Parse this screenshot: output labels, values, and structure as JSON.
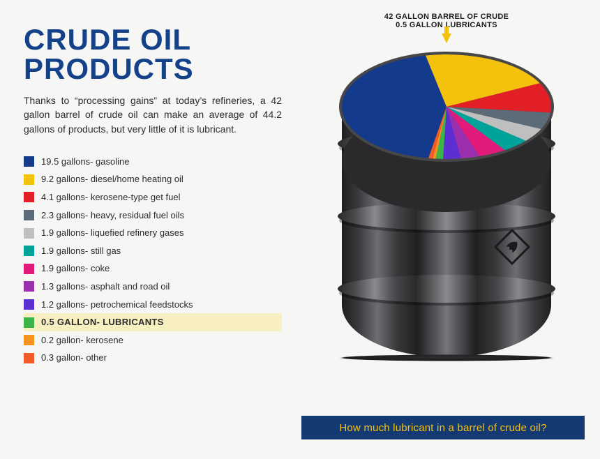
{
  "title_color": "#13418a",
  "title": "CRUDE OIL PRODUCTS",
  "intro": "Thanks to “processing gains” at today’s refineries, a 42 gallon barrel of crude oil can make an average of 44.2 gallons of products, but very little of it is lubricant.",
  "callout_line1": "42 GALLON BARREL OF CRUDE",
  "callout_line2": "0.5 GALLON LUBRICANTS",
  "footer": "How much lubricant in a barrel of crude oil?",
  "footer_bg": "#143a74",
  "footer_color": "#f4c20d",
  "highlight_index": 9,
  "highlight_bg": "#f7efc0",
  "pie_start_angle": 100,
  "items": [
    {
      "value": 19.5,
      "label": "19.5 gallons- gasoline",
      "color": "#143a8c"
    },
    {
      "value": 9.2,
      "label": "9.2 gallons- diesel/home heating oil",
      "color": "#f4c20d"
    },
    {
      "value": 4.1,
      "label": "4.1 gallons- kerosene-type get fuel",
      "color": "#e21f26"
    },
    {
      "value": 2.3,
      "label": "2.3 gallons- heavy, residual fuel oils",
      "color": "#5b6b78"
    },
    {
      "value": 1.9,
      "label": "1.9 gallons- liquefied refinery gases",
      "color": "#bfbfbf"
    },
    {
      "value": 1.9,
      "label": "1.9 gallons- still gas",
      "color": "#00a39a"
    },
    {
      "value": 1.9,
      "label": "1.9 gallons- coke",
      "color": "#e21a7a"
    },
    {
      "value": 1.3,
      "label": "1.3 gallons- asphalt and road oil",
      "color": "#9b2fae"
    },
    {
      "value": 1.2,
      "label": "1.2 gallons- petrochemical feedstocks",
      "color": "#5b2fd1"
    },
    {
      "value": 0.5,
      "label": "0.5 GALLON- LUBRICANTS",
      "color": "#3bb54a"
    },
    {
      "value": 0.2,
      "label": "0.2 gallon- kerosene",
      "color": "#f7941e"
    },
    {
      "value": 0.3,
      "label": "0.3 gallon- other",
      "color": "#f15a29"
    }
  ]
}
